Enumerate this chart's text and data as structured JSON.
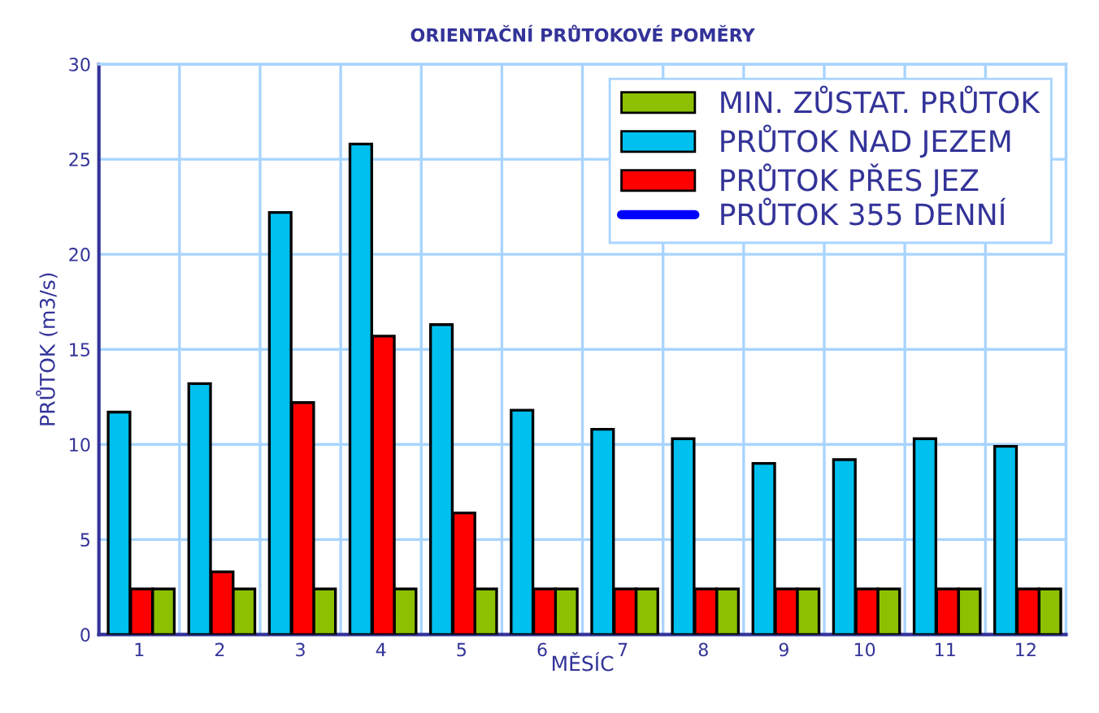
{
  "chart_data": {
    "type": "bar",
    "title": "ORIENTAČNÍ PRŮTOKOVÉ POMĚRY",
    "xlabel": "MĚSÍC",
    "ylabel": "PRŮTOK (m3/s)",
    "categories": [
      "1",
      "2",
      "3",
      "4",
      "5",
      "6",
      "7",
      "8",
      "9",
      "10",
      "11",
      "12"
    ],
    "series": [
      {
        "name": "MIN. ZŮSTAT. PRŮTOK",
        "color": "#8cc000",
        "values": [
          2.4,
          2.4,
          2.4,
          2.4,
          2.4,
          2.4,
          2.4,
          2.4,
          2.4,
          2.4,
          2.4,
          2.4
        ]
      },
      {
        "name": "PRŮTOK NAD JEZEM",
        "color": "#00c0f0",
        "values": [
          11.7,
          13.2,
          22.2,
          25.8,
          16.3,
          11.8,
          10.8,
          10.3,
          9.0,
          9.2,
          10.3,
          9.9
        ]
      },
      {
        "name": "PRŮTOK PŘES JEZ",
        "color": "#ff0000",
        "values": [
          2.4,
          3.3,
          12.2,
          15.7,
          6.4,
          2.4,
          2.4,
          2.4,
          2.4,
          2.4,
          2.4,
          2.4
        ]
      },
      {
        "name": "PRŮTOK 355 DENNÍ",
        "type": "line",
        "color": "#0000ff",
        "values": [
          null,
          null,
          null,
          null,
          null,
          null,
          null,
          null,
          null,
          null,
          null,
          null
        ]
      }
    ],
    "ylim": [
      0,
      30
    ],
    "yticks": [
      0,
      5,
      10,
      15,
      20,
      25,
      30
    ],
    "grid": true,
    "legend": "top right"
  }
}
